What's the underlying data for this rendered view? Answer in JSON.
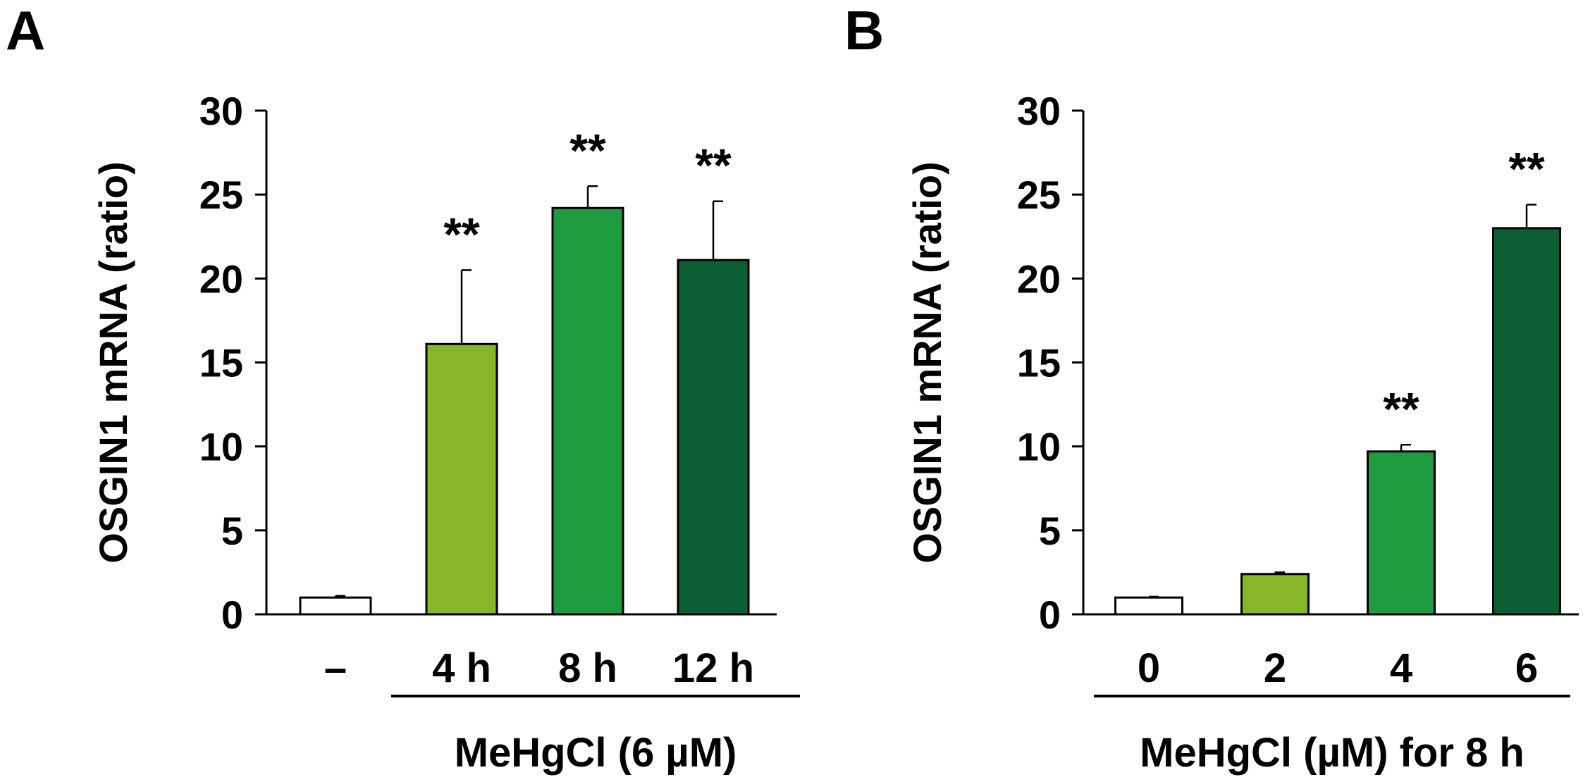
{
  "chart_data": [
    {
      "type": "bar",
      "panel": "A",
      "ylabel": "OSGIN1 mRNA (ratio)",
      "ylim": [
        0,
        30
      ],
      "yticks": [
        0,
        5,
        10,
        15,
        20,
        25,
        30
      ],
      "categories": [
        "–",
        "4 h",
        "8 h",
        "12 h"
      ],
      "values": [
        1.0,
        16.1,
        24.2,
        21.1
      ],
      "errors": [
        0.1,
        4.4,
        1.3,
        3.5
      ],
      "significance": [
        "",
        "**",
        "**",
        "**"
      ],
      "colors": [
        "#ffffff",
        "#86b72a",
        "#1e9b3e",
        "#0c5e33"
      ],
      "group_label": "MeHgCl (6 µM)",
      "group_span": [
        1,
        3
      ]
    },
    {
      "type": "bar",
      "panel": "B",
      "ylabel": "OSGIN1 mRNA (ratio)",
      "ylim": [
        0,
        30
      ],
      "yticks": [
        0,
        5,
        10,
        15,
        20,
        25,
        30
      ],
      "categories": [
        "0",
        "2",
        "4",
        "6"
      ],
      "values": [
        1.0,
        2.4,
        9.7,
        23.0
      ],
      "errors": [
        0.05,
        0.1,
        0.4,
        1.4
      ],
      "significance": [
        "",
        "",
        "**",
        "**"
      ],
      "colors": [
        "#ffffff",
        "#86b72a",
        "#1e9b3e",
        "#0c5e33"
      ],
      "group_label": "MeHgCl (µM) for 8 h",
      "group_span": [
        0,
        3
      ]
    }
  ]
}
